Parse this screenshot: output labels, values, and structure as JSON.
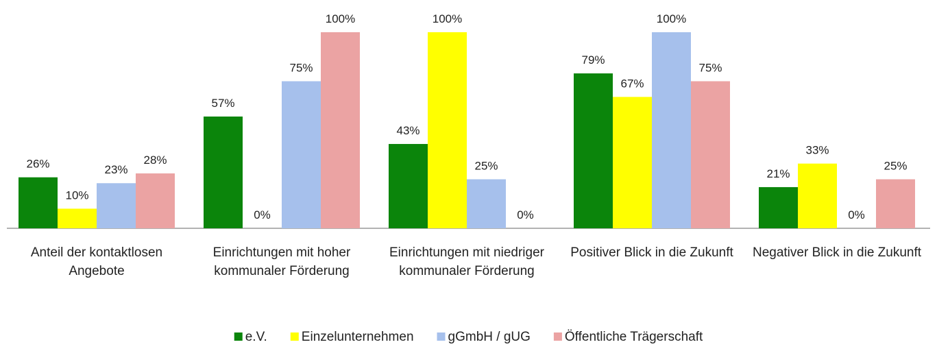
{
  "chart_data": {
    "type": "bar",
    "categories": [
      "Anteil der kontaktlosen Angebote",
      "Einrichtungen mit hoher kommunaler Förderung",
      "Einrichtungen mit niedriger kommunaler Förderung",
      "Positiver Blick in die Zukunft",
      "Negativer Blick in die Zukunft"
    ],
    "series": [
      {
        "name": "e.V.",
        "color": "#0b850b",
        "values": [
          26,
          57,
          43,
          79,
          21
        ],
        "value_labels": [
          "26%",
          "57%",
          "43%",
          "79%",
          "21%"
        ]
      },
      {
        "name": "Einzelunternehmen",
        "color": "#ffff00",
        "values": [
          10,
          0,
          100,
          67,
          33
        ],
        "value_labels": [
          "10%",
          "0%",
          "100%",
          "67%",
          "33%"
        ]
      },
      {
        "name": "gGmbH / gUG",
        "color": "#a6c0ec",
        "values": [
          23,
          75,
          25,
          100,
          0
        ],
        "value_labels": [
          "23%",
          "75%",
          "25%",
          "100%",
          "0%"
        ]
      },
      {
        "name": "Öffentliche Trägerschaft",
        "color": "#eba3a3",
        "values": [
          28,
          100,
          0,
          75,
          25
        ],
        "value_labels": [
          "28%",
          "100%",
          "0%",
          "75%",
          "25%"
        ]
      }
    ],
    "legend": "bottom"
  }
}
